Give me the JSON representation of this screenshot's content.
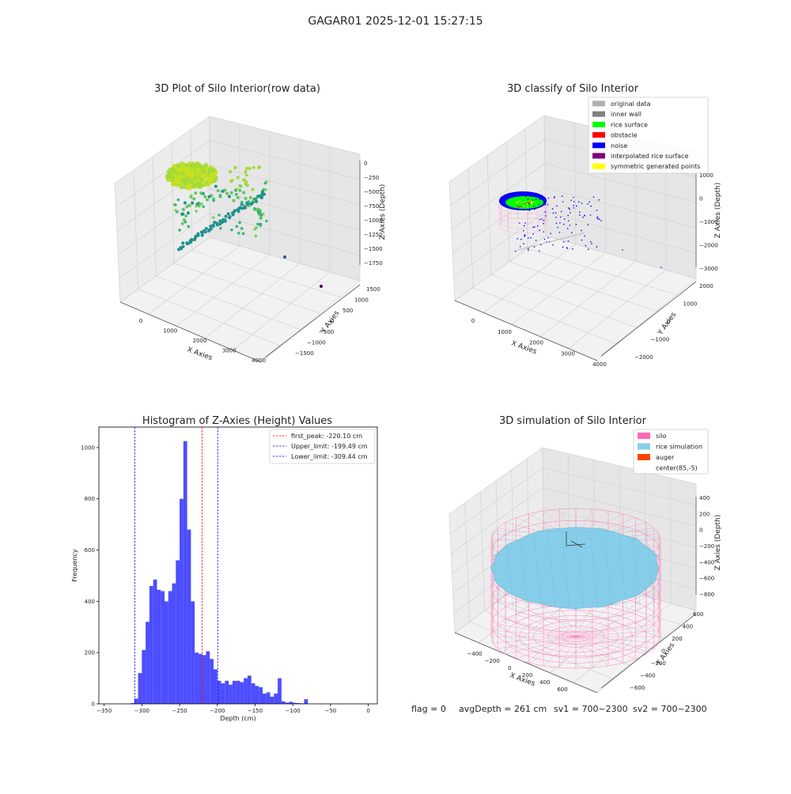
{
  "figure": {
    "suptitle": "GAGAR01 2025-12-01 15:27:15",
    "status": {
      "flag": "flag = 0",
      "avg_depth": "avgDepth = 261 cm",
      "sv1": "sv1 = 700~2300",
      "sv2": "sv2 = 700~2300"
    }
  },
  "chart_data": [
    {
      "type": "scatter3d",
      "title": "3D Plot of Silo Interior(row data)",
      "xlabel": "X Axies",
      "ylabel": "Y Axies",
      "zlabel": "Z Axies (Depth)",
      "x_ticks": [
        "0",
        "1000",
        "2000",
        "3000",
        "4000"
      ],
      "y_ticks": [
        "−1500",
        "−1000",
        "−500",
        "0",
        "500",
        "1000",
        "1500"
      ],
      "z_ticks": [
        "0",
        "−250",
        "−500",
        "−750",
        "−1000",
        "−1250",
        "−1500",
        "−1750"
      ],
      "colormap": [
        "#440154",
        "#3b528b",
        "#21918c",
        "#5ec962",
        "#fde725"
      ]
    },
    {
      "type": "scatter3d",
      "title": "3D classify of Silo Interior",
      "xlabel": "X Axies",
      "ylabel": "Y Axies",
      "zlabel": "Z Axies (Depth)",
      "x_ticks": [
        "0",
        "1000",
        "2000",
        "3000",
        "4000"
      ],
      "y_ticks": [
        "−2000",
        "−1000",
        "0",
        "1000",
        "2000"
      ],
      "z_ticks": [
        "1000",
        "0",
        "−1000",
        "−2000",
        "−3000"
      ],
      "legend_position": "top-right",
      "legend": [
        {
          "label": "original data",
          "color": "#b0b0b0"
        },
        {
          "label": "inner wall",
          "color": "#808080"
        },
        {
          "label": "rice surface",
          "color": "#00ff00"
        },
        {
          "label": "obstacle",
          "color": "#ff0000"
        },
        {
          "label": "noise",
          "color": "#0000ff"
        },
        {
          "label": "interpolated rice surface",
          "color": "#800080"
        },
        {
          "label": "symmetric generated points",
          "color": "#ffff00"
        }
      ]
    },
    {
      "type": "bar",
      "title": "Histogram of Z-Axies (Height) Values",
      "xlabel": "Depth (cm)",
      "ylabel": "Frequency",
      "xlim": [
        -357,
        12
      ],
      "ylim": [
        0,
        1080
      ],
      "x_ticks": [
        -350,
        -300,
        -250,
        -200,
        -150,
        -100,
        -50,
        0
      ],
      "y_ticks": [
        0,
        200,
        400,
        600,
        800,
        1000
      ],
      "bar_color": "#4d4dff",
      "bin_width": 5,
      "bin_starts": [
        -315,
        -310,
        -305,
        -300,
        -295,
        -290,
        -285,
        -280,
        -275,
        -270,
        -265,
        -260,
        -255,
        -250,
        -245,
        -240,
        -235,
        -230,
        -225,
        -220,
        -215,
        -210,
        -205,
        -200,
        -195,
        -190,
        -185,
        -180,
        -175,
        -170,
        -165,
        -160,
        -155,
        -150,
        -145,
        -140,
        -135,
        -130,
        -125,
        -120,
        -115,
        -110,
        -105,
        -100,
        -95,
        -90,
        -85,
        -80,
        -75,
        -70,
        -65,
        -60,
        -55,
        -50,
        -45,
        -40,
        -35,
        -30,
        -25,
        -20,
        -15,
        -10,
        -5,
        0
      ],
      "values": [
        3,
        20,
        120,
        210,
        320,
        460,
        485,
        445,
        440,
        400,
        440,
        470,
        560,
        800,
        1025,
        680,
        400,
        200,
        195,
        190,
        205,
        175,
        135,
        90,
        80,
        90,
        75,
        90,
        90,
        85,
        100,
        110,
        80,
        70,
        65,
        40,
        45,
        28,
        40,
        100,
        10,
        5,
        8,
        4,
        3,
        2,
        18,
        0,
        0,
        0,
        0,
        0,
        0,
        0,
        0,
        0,
        0,
        0,
        0,
        0,
        0,
        0,
        0,
        0
      ],
      "vlines": [
        {
          "label": "first_peak: -220.10 cm",
          "x": -220.1,
          "color": "#ff0000"
        },
        {
          "label": "Upper_limit: -199.49 cm",
          "x": -199.49,
          "color": "#0000ff"
        },
        {
          "label": "Lower_limit: -309.44 cm",
          "x": -309.44,
          "color": "#0000ff"
        }
      ],
      "legend_position": "top-right"
    },
    {
      "type": "surface3d",
      "title": "3D simulation of Silo Interior",
      "xlabel": "X Axies",
      "ylabel": "Y Axies",
      "zlabel": "Z Axies (Depth)",
      "x_ticks": [
        "−400",
        "−200",
        "0",
        "200",
        "400",
        "600"
      ],
      "y_ticks": [
        "−600",
        "−400",
        "−200",
        "0",
        "200",
        "400",
        "600"
      ],
      "z_ticks": [
        "400",
        "200",
        "0",
        "−200",
        "−400",
        "−600",
        "−800"
      ],
      "legend_position": "top-right",
      "legend": [
        {
          "label": "silo",
          "color": "#ff69b4"
        },
        {
          "label": "rice simulation",
          "color": "#87ceeb"
        },
        {
          "label": "auger",
          "color": "#ff4500"
        },
        {
          "label": "center(85,-5)",
          "color": "#ffffff"
        }
      ]
    }
  ]
}
